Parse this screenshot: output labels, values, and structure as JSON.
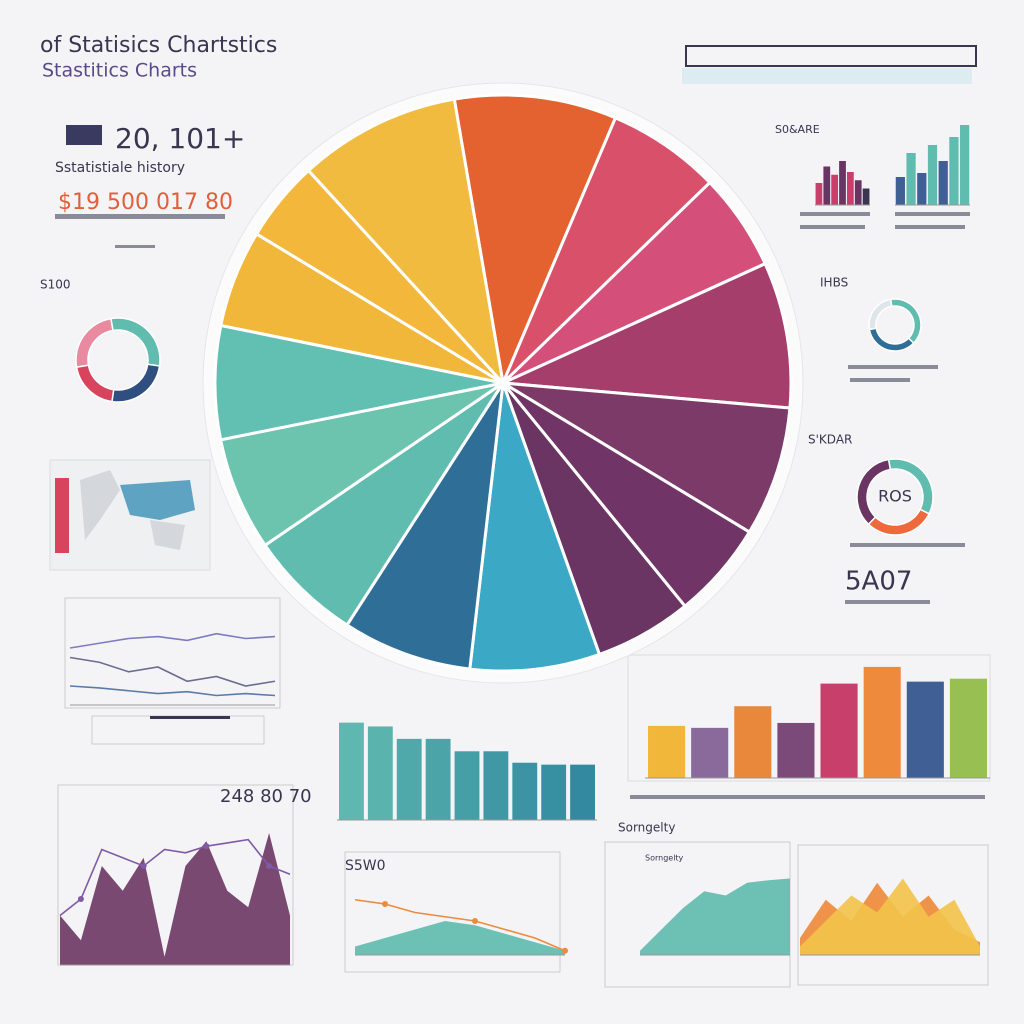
{
  "header": {
    "title": "of Statisics Chartstics",
    "subtitle": "Stastitics Charts",
    "stat": "20, 101+",
    "stat_caption": "Sstatistiale history",
    "money": "$19 500 017 80",
    "side_stat": "5A07",
    "side_label": "Sorngelty"
  },
  "chart_data": [
    {
      "type": "pie",
      "values": [
        10,
        7,
        6,
        9,
        8,
        6,
        6,
        8,
        8,
        7,
        7,
        7,
        6,
        5,
        10
      ],
      "colors": [
        "#e4622f",
        "#d9506a",
        "#d4507a",
        "#a63e6b",
        "#7c3a68",
        "#703566",
        "#6a3463",
        "#3ba8c6",
        "#2f6f97",
        "#5fbcae",
        "#6cc3ae",
        "#62c0b2",
        "#f0b73a",
        "#f2b73b",
        "#f0bb3f"
      ]
    },
    {
      "type": "bar",
      "values": [
        53,
        51,
        73,
        56,
        96,
        113,
        98,
        101
      ],
      "colors": [
        "#f0b73a",
        "#8a6a9a",
        "#e9873a",
        "#7c4a78",
        "#c83f6c",
        "#ee8a3c",
        "#3f5f95",
        "#97bf52"
      ],
      "ylim": [
        0,
        120
      ]
    },
    {
      "type": "bar",
      "values": [
        102,
        98,
        85,
        85,
        72,
        72,
        60,
        58,
        58
      ],
      "colors": [
        "#5fb8b0",
        "#5ab3ad",
        "#4fa9aa",
        "#4aa4a8",
        "#44a0a6",
        "#3f98a4",
        "#3b93a3",
        "#3790a2",
        "#338aa0"
      ],
      "ylim": [
        0,
        110
      ]
    },
    {
      "type": "area",
      "title": "248 80 70",
      "ylim": [
        0,
        100
      ],
      "series": [
        {
          "color": "#6e3a66",
          "values": [
            30,
            15,
            60,
            45,
            65,
            5,
            60,
            75,
            45,
            35,
            80,
            30
          ]
        },
        {
          "type": "line",
          "color": "#7f5aa6",
          "values": [
            30,
            40,
            70,
            65,
            60,
            70,
            68,
            72,
            74,
            76,
            60,
            55
          ]
        }
      ]
    },
    {
      "type": "area",
      "title": "S5W0",
      "ylim": [
        0,
        100
      ],
      "series": [
        {
          "color": "#5fbcae",
          "values": [
            10,
            20,
            30,
            40,
            35,
            25,
            15,
            5
          ]
        },
        {
          "type": "line",
          "color": "#ee8a3c",
          "values": [
            65,
            60,
            50,
            45,
            40,
            30,
            20,
            5
          ]
        }
      ]
    },
    {
      "type": "area",
      "title": "Sorngelty",
      "ylim": [
        0,
        100
      ],
      "series": [
        {
          "color": "#5fbcae",
          "values": [
            5,
            30,
            55,
            75,
            70,
            85,
            88,
            90
          ]
        }
      ]
    },
    {
      "type": "area",
      "ylim": [
        0,
        100
      ],
      "series": [
        {
          "color": "#ee8a3c",
          "values": [
            20,
            65,
            40,
            85,
            45,
            70,
            30,
            15
          ]
        },
        {
          "color": "#f2c24b",
          "values": [
            10,
            40,
            70,
            50,
            90,
            45,
            65,
            10
          ]
        }
      ]
    },
    {
      "type": "line",
      "ylim": [
        0,
        100
      ],
      "series": [
        {
          "color": "#7c7cc0",
          "values": [
            60,
            65,
            70,
            72,
            68,
            75,
            70,
            72
          ]
        },
        {
          "color": "#6c6c90",
          "values": [
            50,
            45,
            35,
            40,
            25,
            30,
            20,
            25
          ]
        },
        {
          "color": "#5a7aa8",
          "values": [
            20,
            18,
            15,
            12,
            14,
            10,
            12,
            10
          ]
        }
      ]
    },
    {
      "type": "donut",
      "title": "S100",
      "values": [
        30,
        25,
        20,
        25
      ],
      "colors": [
        "#5fbcae",
        "#2f4f80",
        "#d8435e",
        "#e98aa0"
      ]
    },
    {
      "type": "donut",
      "title": "IHBS",
      "values": [
        40,
        35,
        25
      ],
      "colors": [
        "#5fbcae",
        "#2f6f97",
        "#dfe6ea"
      ]
    },
    {
      "type": "donut",
      "title": "S'KDAR",
      "label": "ROS",
      "values": [
        35,
        30,
        35
      ],
      "colors": [
        "#5fbcae",
        "#ee6a3c",
        "#6a3463"
      ]
    },
    {
      "type": "bar",
      "title": "S0&ARE",
      "values": [
        40,
        70,
        55,
        80,
        60,
        45,
        30
      ],
      "colors": [
        "#c83f6c",
        "#6a3463",
        "#c83f6c",
        "#6a3463",
        "#c83f6c",
        "#6a3463",
        "#3a3550"
      ],
      "ylim": [
        0,
        100
      ]
    },
    {
      "type": "bar",
      "values": [
        35,
        65,
        40,
        75,
        55,
        85,
        100
      ],
      "colors": [
        "#3f5f95",
        "#5fbcae",
        "#3f5f95",
        "#5fbcae",
        "#3f5f95",
        "#5fbcae",
        "#5fbcae"
      ],
      "ylim": [
        0,
        100
      ]
    }
  ]
}
